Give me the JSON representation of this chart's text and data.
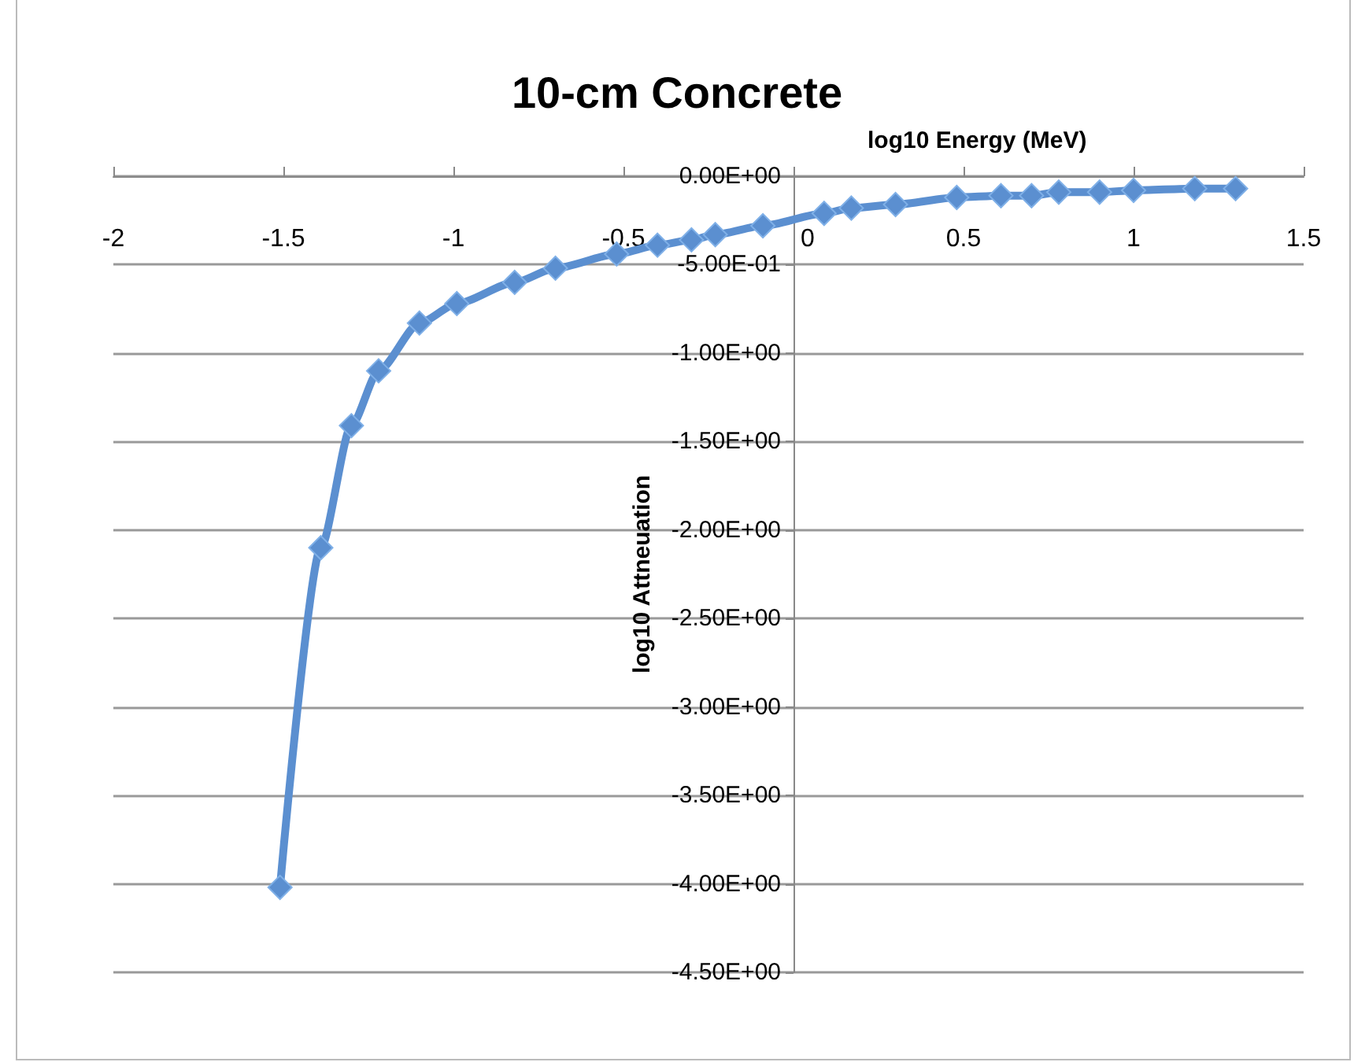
{
  "chart_data": {
    "type": "line",
    "title": "10-cm Concrete",
    "xlabel": "log10 Energy (MeV)",
    "ylabel": "log10 Attneuation",
    "x": [
      -1.51,
      -1.39,
      -1.3,
      -1.22,
      -1.1,
      -0.99,
      -0.82,
      -0.7,
      -0.52,
      -0.4,
      -0.3,
      -0.23,
      -0.09,
      0.09,
      0.17,
      0.3,
      0.48,
      0.61,
      0.7,
      0.78,
      0.9,
      1.0,
      1.18,
      1.3
    ],
    "series": [
      {
        "color": "#5b8fd0",
        "values": [
          -4.02,
          -2.1,
          -1.41,
          -1.1,
          -0.83,
          -0.72,
          -0.6,
          -0.52,
          -0.44,
          -0.39,
          -0.36,
          -0.33,
          -0.28,
          -0.21,
          -0.18,
          -0.16,
          -0.12,
          -0.11,
          -0.11,
          -0.09,
          -0.09,
          -0.08,
          -0.07,
          -0.07
        ]
      }
    ],
    "xlim": [
      -2,
      1.5
    ],
    "xticks": [
      -2,
      -1.5,
      -1,
      -0.5,
      0,
      0.5,
      1,
      1.5
    ],
    "ylim": [
      -4.5,
      0
    ],
    "yticks": [
      {
        "value": 0,
        "label": "0.00E+00"
      },
      {
        "value": -0.5,
        "label": "-5.00E-01"
      },
      {
        "value": -1,
        "label": "-1.00E+00"
      },
      {
        "value": -1.5,
        "label": "-1.50E+00"
      },
      {
        "value": -2,
        "label": "-2.00E+00"
      },
      {
        "value": -2.5,
        "label": "-2.50E+00"
      },
      {
        "value": -3,
        "label": "-3.00E+00"
      },
      {
        "value": -3.5,
        "label": "-3.50E+00"
      },
      {
        "value": -4,
        "label": "-4.00E+00"
      },
      {
        "value": -4.5,
        "label": "-4.50E+00"
      }
    ],
    "grid": "y",
    "marker": "diamond",
    "line_style": "solid"
  }
}
